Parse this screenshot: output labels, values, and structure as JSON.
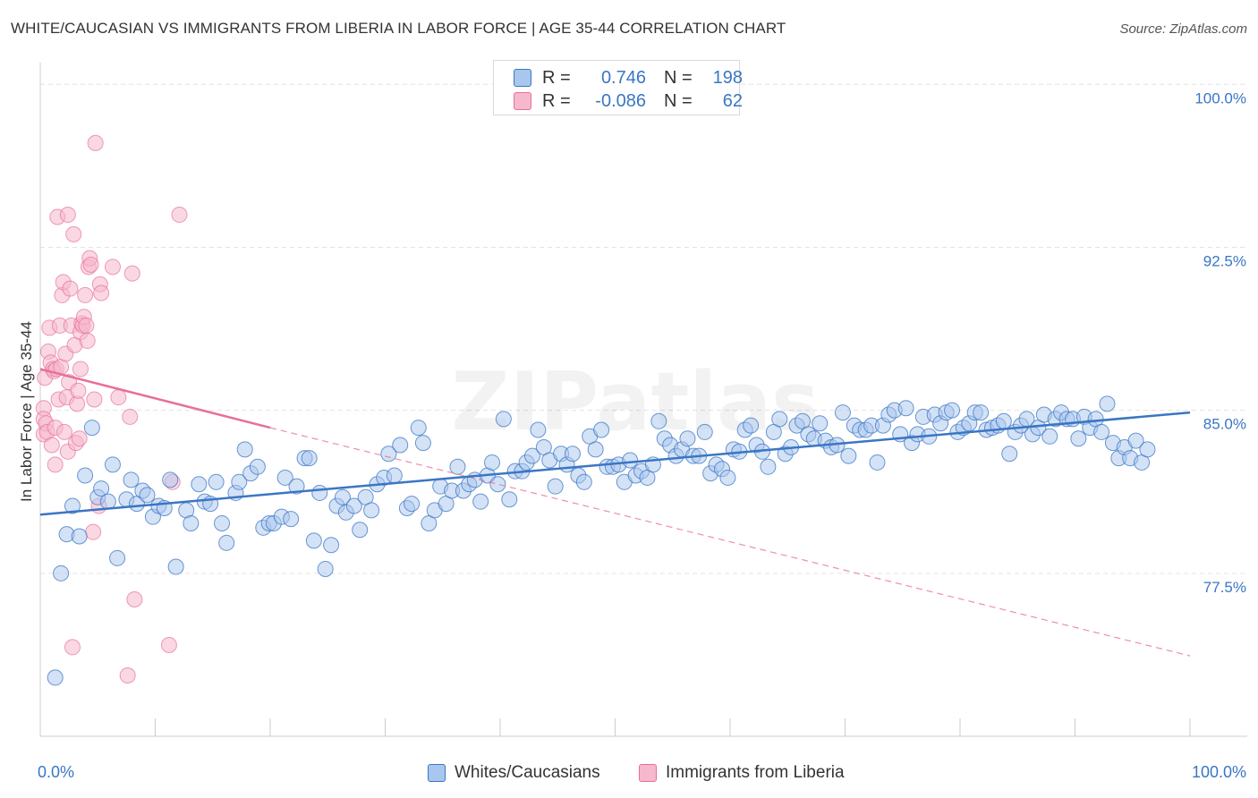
{
  "title": "WHITE/CAUCASIAN VS IMMIGRANTS FROM LIBERIA IN LABOR FORCE | AGE 35-44 CORRELATION CHART",
  "source": "Source: ZipAtlas.com",
  "watermark": "ZIPatlas",
  "legend_top": {
    "rows": [
      {
        "r_label": "R =",
        "r_value": "0.746",
        "n_label": "N =",
        "n_value": "198"
      },
      {
        "r_label": "R =",
        "r_value": "-0.086",
        "n_label": "N =",
        "n_value": "62"
      }
    ]
  },
  "chart_data": {
    "type": "scatter",
    "title": "WHITE/CAUCASIAN VS IMMIGRANTS FROM LIBERIA IN LABOR FORCE | AGE 35-44 CORRELATION CHART",
    "xlabel": "",
    "ylabel": "In Labor Force | Age 35-44",
    "xlim": [
      0,
      100
    ],
    "ylim": [
      70.0,
      101.0
    ],
    "x_tick_labels": [
      "0.0%",
      "100.0%"
    ],
    "y_ticks": [
      77.5,
      85.0,
      92.5,
      100.0
    ],
    "y_tick_labels": [
      "77.5%",
      "85.0%",
      "92.5%",
      "100.0%"
    ],
    "grid": true,
    "legend_position": "bottom",
    "colors": {
      "blue": "#3a76c4",
      "blue_fill": "#a9c6ee",
      "pink": "#e8709a",
      "pink_fill": "#f5b8cc",
      "tick_text": "#3a76c4",
      "grid": "#e3e3e3"
    },
    "series": [
      {
        "name": "Whites/Caucasians",
        "color": "#3a76c4",
        "trend": {
          "x": [
            0,
            100
          ],
          "y": [
            80.2,
            84.9
          ]
        },
        "points": [
          [
            1.3,
            72.7
          ],
          [
            1.8,
            77.5
          ],
          [
            2.3,
            79.3
          ],
          [
            2.8,
            80.6
          ],
          [
            3.4,
            79.2
          ],
          [
            3.9,
            82.0
          ],
          [
            4.5,
            84.2
          ],
          [
            5.0,
            81.0
          ],
          [
            5.3,
            81.4
          ],
          [
            5.9,
            80.8
          ],
          [
            6.3,
            82.5
          ],
          [
            6.7,
            78.2
          ],
          [
            7.5,
            80.9
          ],
          [
            7.9,
            81.8
          ],
          [
            8.4,
            80.7
          ],
          [
            8.9,
            81.3
          ],
          [
            9.3,
            81.1
          ],
          [
            9.8,
            80.1
          ],
          [
            10.3,
            80.6
          ],
          [
            10.8,
            80.5
          ],
          [
            11.3,
            81.8
          ],
          [
            11.8,
            77.8
          ],
          [
            12.7,
            80.4
          ],
          [
            13.1,
            79.8
          ],
          [
            13.8,
            81.6
          ],
          [
            14.3,
            80.8
          ],
          [
            14.8,
            80.7
          ],
          [
            15.3,
            81.7
          ],
          [
            15.8,
            79.8
          ],
          [
            16.2,
            78.9
          ],
          [
            17.0,
            81.2
          ],
          [
            17.3,
            81.7
          ],
          [
            17.8,
            83.2
          ],
          [
            18.3,
            82.1
          ],
          [
            18.9,
            82.4
          ],
          [
            19.4,
            79.6
          ],
          [
            19.9,
            79.8
          ],
          [
            20.3,
            79.8
          ],
          [
            21.0,
            80.1
          ],
          [
            21.3,
            81.9
          ],
          [
            21.8,
            80.0
          ],
          [
            22.3,
            81.5
          ],
          [
            23.0,
            82.8
          ],
          [
            23.4,
            82.8
          ],
          [
            23.8,
            79.0
          ],
          [
            24.3,
            81.2
          ],
          [
            24.8,
            77.7
          ],
          [
            25.3,
            78.8
          ],
          [
            25.8,
            80.6
          ],
          [
            26.3,
            81.0
          ],
          [
            26.6,
            80.3
          ],
          [
            27.3,
            80.6
          ],
          [
            27.8,
            79.5
          ],
          [
            28.3,
            81.0
          ],
          [
            28.8,
            80.4
          ],
          [
            29.3,
            81.6
          ],
          [
            29.9,
            81.9
          ],
          [
            30.3,
            83.0
          ],
          [
            30.8,
            82.0
          ],
          [
            31.3,
            83.4
          ],
          [
            31.9,
            80.5
          ],
          [
            32.3,
            80.7
          ],
          [
            32.9,
            84.2
          ],
          [
            33.3,
            83.5
          ],
          [
            33.8,
            79.8
          ],
          [
            34.3,
            80.4
          ],
          [
            34.8,
            81.5
          ],
          [
            35.3,
            80.7
          ],
          [
            35.8,
            81.3
          ],
          [
            36.3,
            82.4
          ],
          [
            36.8,
            81.3
          ],
          [
            37.3,
            81.6
          ],
          [
            37.8,
            81.8
          ],
          [
            38.3,
            80.8
          ],
          [
            38.9,
            82.0
          ],
          [
            39.3,
            82.6
          ],
          [
            39.8,
            81.6
          ],
          [
            40.3,
            84.6
          ],
          [
            40.8,
            80.9
          ],
          [
            41.3,
            82.2
          ],
          [
            41.9,
            82.2
          ],
          [
            42.3,
            82.6
          ],
          [
            42.8,
            82.9
          ],
          [
            43.3,
            84.1
          ],
          [
            43.8,
            83.3
          ],
          [
            44.3,
            82.7
          ],
          [
            44.8,
            81.5
          ],
          [
            45.3,
            83.0
          ],
          [
            45.8,
            82.5
          ],
          [
            46.3,
            83.0
          ],
          [
            46.8,
            82.0
          ],
          [
            47.3,
            81.7
          ],
          [
            47.8,
            83.8
          ],
          [
            48.3,
            83.2
          ],
          [
            48.8,
            84.1
          ],
          [
            49.3,
            82.4
          ],
          [
            49.8,
            82.4
          ],
          [
            50.3,
            82.5
          ],
          [
            50.8,
            81.7
          ],
          [
            51.3,
            82.7
          ],
          [
            51.8,
            82.0
          ],
          [
            52.3,
            82.2
          ],
          [
            52.8,
            81.9
          ],
          [
            53.3,
            82.5
          ],
          [
            53.8,
            84.5
          ],
          [
            54.3,
            83.7
          ],
          [
            54.8,
            83.4
          ],
          [
            55.3,
            82.9
          ],
          [
            55.8,
            83.2
          ],
          [
            56.3,
            83.7
          ],
          [
            56.8,
            82.9
          ],
          [
            57.3,
            82.9
          ],
          [
            57.8,
            84.0
          ],
          [
            58.3,
            82.1
          ],
          [
            58.8,
            82.5
          ],
          [
            59.3,
            82.3
          ],
          [
            59.8,
            81.9
          ],
          [
            60.3,
            83.2
          ],
          [
            60.8,
            83.1
          ],
          [
            61.3,
            84.1
          ],
          [
            61.8,
            84.3
          ],
          [
            62.3,
            83.4
          ],
          [
            62.8,
            83.1
          ],
          [
            63.3,
            82.4
          ],
          [
            63.8,
            84.0
          ],
          [
            64.3,
            84.6
          ],
          [
            64.8,
            83.0
          ],
          [
            65.3,
            83.3
          ],
          [
            65.8,
            84.3
          ],
          [
            66.3,
            84.5
          ],
          [
            66.8,
            83.9
          ],
          [
            67.3,
            83.7
          ],
          [
            67.8,
            84.4
          ],
          [
            68.3,
            83.6
          ],
          [
            68.8,
            83.3
          ],
          [
            69.3,
            83.4
          ],
          [
            69.8,
            84.9
          ],
          [
            70.3,
            82.9
          ],
          [
            70.8,
            84.3
          ],
          [
            71.3,
            84.1
          ],
          [
            71.8,
            84.1
          ],
          [
            72.3,
            84.3
          ],
          [
            72.8,
            82.6
          ],
          [
            73.3,
            84.3
          ],
          [
            73.8,
            84.8
          ],
          [
            74.3,
            85.0
          ],
          [
            74.8,
            83.9
          ],
          [
            75.3,
            85.1
          ],
          [
            75.8,
            83.5
          ],
          [
            76.3,
            83.9
          ],
          [
            76.8,
            84.7
          ],
          [
            77.3,
            83.8
          ],
          [
            77.8,
            84.8
          ],
          [
            78.3,
            84.4
          ],
          [
            78.8,
            84.9
          ],
          [
            79.3,
            85.0
          ],
          [
            79.8,
            84.0
          ],
          [
            80.3,
            84.2
          ],
          [
            80.8,
            84.4
          ],
          [
            81.3,
            84.9
          ],
          [
            81.8,
            84.9
          ],
          [
            82.3,
            84.1
          ],
          [
            82.8,
            84.2
          ],
          [
            83.3,
            84.3
          ],
          [
            83.8,
            84.5
          ],
          [
            84.3,
            83.0
          ],
          [
            84.8,
            84.0
          ],
          [
            85.3,
            84.3
          ],
          [
            85.8,
            84.6
          ],
          [
            86.3,
            83.9
          ],
          [
            86.8,
            84.2
          ],
          [
            87.3,
            84.8
          ],
          [
            87.8,
            83.8
          ],
          [
            88.3,
            84.6
          ],
          [
            88.8,
            84.9
          ],
          [
            89.3,
            84.6
          ],
          [
            89.8,
            84.6
          ],
          [
            90.3,
            83.7
          ],
          [
            90.8,
            84.7
          ],
          [
            91.3,
            84.2
          ],
          [
            91.8,
            84.6
          ],
          [
            92.3,
            84.0
          ],
          [
            92.8,
            85.3
          ],
          [
            93.3,
            83.5
          ],
          [
            93.8,
            82.8
          ],
          [
            94.3,
            83.3
          ],
          [
            94.8,
            82.8
          ],
          [
            95.3,
            83.6
          ],
          [
            95.8,
            82.6
          ],
          [
            96.3,
            83.2
          ]
        ]
      },
      {
        "name": "Immigrants from Liberia",
        "color": "#e8709a",
        "trend_solid": {
          "x": [
            0,
            20
          ],
          "y": [
            86.9,
            84.2
          ]
        },
        "trend_dashed": {
          "x": [
            20,
            100
          ],
          "y": [
            84.2,
            73.7
          ]
        },
        "points": [
          [
            0.3,
            85.1
          ],
          [
            0.3,
            83.9
          ],
          [
            0.3,
            84.6
          ],
          [
            0.4,
            86.5
          ],
          [
            0.5,
            84.4
          ],
          [
            0.6,
            84.0
          ],
          [
            0.7,
            87.7
          ],
          [
            0.8,
            88.8
          ],
          [
            0.9,
            87.2
          ],
          [
            1.0,
            83.4
          ],
          [
            1.1,
            86.9
          ],
          [
            1.2,
            86.8
          ],
          [
            1.3,
            84.2
          ],
          [
            1.3,
            82.5
          ],
          [
            1.4,
            86.9
          ],
          [
            1.5,
            93.9
          ],
          [
            1.6,
            85.5
          ],
          [
            1.7,
            88.9
          ],
          [
            1.8,
            87.0
          ],
          [
            1.9,
            90.3
          ],
          [
            2.0,
            90.9
          ],
          [
            2.1,
            84.0
          ],
          [
            2.2,
            87.6
          ],
          [
            2.3,
            85.6
          ],
          [
            2.4,
            94.0
          ],
          [
            2.4,
            83.1
          ],
          [
            2.5,
            86.3
          ],
          [
            2.6,
            90.6
          ],
          [
            2.7,
            88.9
          ],
          [
            2.8,
            74.1
          ],
          [
            2.9,
            93.1
          ],
          [
            3.0,
            88.0
          ],
          [
            3.1,
            83.5
          ],
          [
            3.2,
            85.3
          ],
          [
            3.3,
            85.9
          ],
          [
            3.4,
            83.7
          ],
          [
            3.5,
            86.9
          ],
          [
            3.5,
            88.6
          ],
          [
            3.6,
            89.0
          ],
          [
            3.7,
            88.9
          ],
          [
            3.8,
            89.3
          ],
          [
            3.9,
            90.3
          ],
          [
            4.0,
            88.9
          ],
          [
            4.1,
            88.2
          ],
          [
            4.2,
            91.6
          ],
          [
            4.3,
            92.0
          ],
          [
            4.4,
            91.7
          ],
          [
            4.6,
            79.4
          ],
          [
            4.7,
            85.5
          ],
          [
            4.8,
            97.3
          ],
          [
            5.1,
            80.6
          ],
          [
            5.2,
            90.8
          ],
          [
            5.3,
            90.4
          ],
          [
            6.3,
            91.6
          ],
          [
            6.8,
            85.6
          ],
          [
            7.6,
            72.8
          ],
          [
            7.8,
            84.7
          ],
          [
            8.0,
            91.3
          ],
          [
            8.2,
            76.3
          ],
          [
            11.2,
            74.2
          ],
          [
            11.5,
            81.7
          ],
          [
            12.1,
            94.0
          ]
        ]
      }
    ]
  },
  "legend_bottom": [
    {
      "label": "Whites/Caucasians"
    },
    {
      "label": "Immigrants from Liberia"
    }
  ]
}
